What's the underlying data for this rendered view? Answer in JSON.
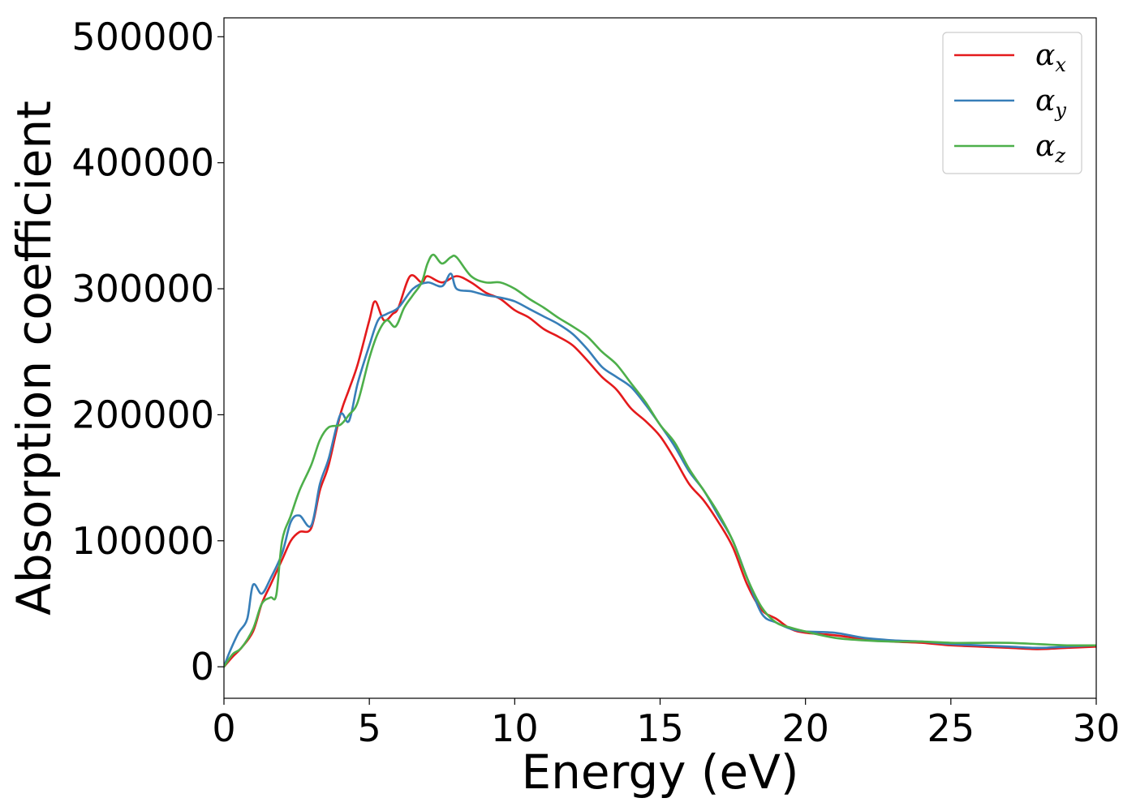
{
  "chart_data": {
    "type": "line",
    "xlabel": "Energy (eV)",
    "ylabel": "Absorption coefficient",
    "xlim": [
      0,
      30
    ],
    "ylim": [
      -25000,
      515000
    ],
    "xticks": [
      0,
      5,
      10,
      15,
      20,
      25,
      30
    ],
    "xtick_labels": [
      "0",
      "5",
      "10",
      "15",
      "20",
      "25",
      "30"
    ],
    "yticks": [
      0,
      100000,
      200000,
      300000,
      400000,
      500000
    ],
    "ytick_labels": [
      "0",
      "100000",
      "200000",
      "300000",
      "400000",
      "500000"
    ],
    "grid": false,
    "legend_position": "top-right",
    "series": [
      {
        "name": "α",
        "subscript": "x",
        "color": "#e41a1c",
        "x": [
          0,
          0.3,
          0.6,
          1.0,
          1.3,
          1.6,
          2.0,
          2.3,
          2.6,
          3.0,
          3.3,
          3.6,
          4.0,
          4.3,
          4.6,
          5.0,
          5.2,
          5.5,
          5.8,
          6.0,
          6.4,
          6.8,
          7.0,
          7.5,
          8.0,
          8.5,
          9.0,
          9.5,
          10,
          10.5,
          11,
          11.5,
          12,
          12.5,
          13,
          13.5,
          14,
          14.5,
          15,
          15.5,
          16,
          16.5,
          17,
          17.5,
          18,
          18.5,
          19,
          19.5,
          20,
          21,
          22,
          23,
          24,
          25,
          26,
          27,
          28,
          29,
          30
        ],
        "y": [
          0,
          8000,
          15000,
          28000,
          50000,
          65000,
          85000,
          100000,
          107000,
          110000,
          140000,
          160000,
          200000,
          220000,
          240000,
          275000,
          290000,
          275000,
          280000,
          285000,
          310000,
          305000,
          310000,
          305000,
          310000,
          305000,
          297000,
          292000,
          283000,
          277000,
          268000,
          262000,
          255000,
          243000,
          230000,
          220000,
          205000,
          195000,
          183000,
          165000,
          145000,
          132000,
          115000,
          95000,
          65000,
          45000,
          38000,
          30000,
          27000,
          25000,
          22000,
          20000,
          19000,
          17000,
          16000,
          15000,
          14000,
          15000,
          16000
        ]
      },
      {
        "name": "α",
        "subscript": "y",
        "color": "#377eb8",
        "x": [
          0,
          0.2,
          0.5,
          0.8,
          1.0,
          1.3,
          1.6,
          2.0,
          2.3,
          2.6,
          3.0,
          3.3,
          3.6,
          4.0,
          4.3,
          4.6,
          5.0,
          5.3,
          5.6,
          6.0,
          6.5,
          7.0,
          7.5,
          7.8,
          8.0,
          8.5,
          9.0,
          9.5,
          10,
          10.5,
          11,
          11.5,
          12,
          12.5,
          13,
          13.5,
          14,
          14.5,
          15,
          15.5,
          16,
          16.5,
          17,
          17.5,
          18,
          18.5,
          19,
          19.5,
          20,
          21,
          22,
          23,
          24,
          25,
          26,
          27,
          28,
          29,
          30
        ],
        "y": [
          0,
          12000,
          27000,
          38000,
          65000,
          58000,
          70000,
          90000,
          115000,
          120000,
          112000,
          145000,
          165000,
          200000,
          195000,
          225000,
          255000,
          275000,
          280000,
          285000,
          300000,
          305000,
          302000,
          312000,
          300000,
          298000,
          295000,
          293000,
          290000,
          284000,
          278000,
          272000,
          264000,
          252000,
          238000,
          230000,
          222000,
          208000,
          192000,
          175000,
          155000,
          140000,
          120000,
          100000,
          70000,
          42000,
          35000,
          30000,
          28000,
          27000,
          23000,
          21000,
          20000,
          18000,
          17000,
          16000,
          15000,
          16000,
          17000
        ]
      },
      {
        "name": "α",
        "subscript": "z",
        "color": "#4daf4a",
        "x": [
          0,
          0.3,
          0.6,
          1.0,
          1.3,
          1.6,
          1.8,
          2.0,
          2.3,
          2.6,
          3.0,
          3.3,
          3.6,
          4.0,
          4.3,
          4.6,
          5.0,
          5.3,
          5.6,
          5.9,
          6.2,
          6.5,
          6.8,
          7.0,
          7.2,
          7.5,
          7.8,
          8.0,
          8.5,
          9.0,
          9.5,
          10,
          10.5,
          11,
          11.5,
          12,
          12.5,
          13,
          13.5,
          14,
          14.5,
          15,
          15.5,
          16,
          16.5,
          17,
          17.5,
          18,
          18.5,
          19,
          19.5,
          20,
          21,
          22,
          23,
          24,
          25,
          26,
          27,
          28,
          29,
          30
        ],
        "y": [
          0,
          10000,
          15000,
          30000,
          50000,
          55000,
          57000,
          100000,
          120000,
          140000,
          160000,
          180000,
          190000,
          192000,
          200000,
          210000,
          245000,
          265000,
          275000,
          270000,
          285000,
          295000,
          305000,
          320000,
          327000,
          320000,
          325000,
          325000,
          310000,
          305000,
          305000,
          300000,
          292000,
          285000,
          277000,
          270000,
          262000,
          250000,
          240000,
          225000,
          210000,
          192000,
          178000,
          157000,
          140000,
          122000,
          100000,
          70000,
          47000,
          35000,
          31000,
          28000,
          23000,
          21000,
          20000,
          20000,
          19000,
          19000,
          19000,
          18000,
          17000,
          17000
        ]
      }
    ]
  }
}
